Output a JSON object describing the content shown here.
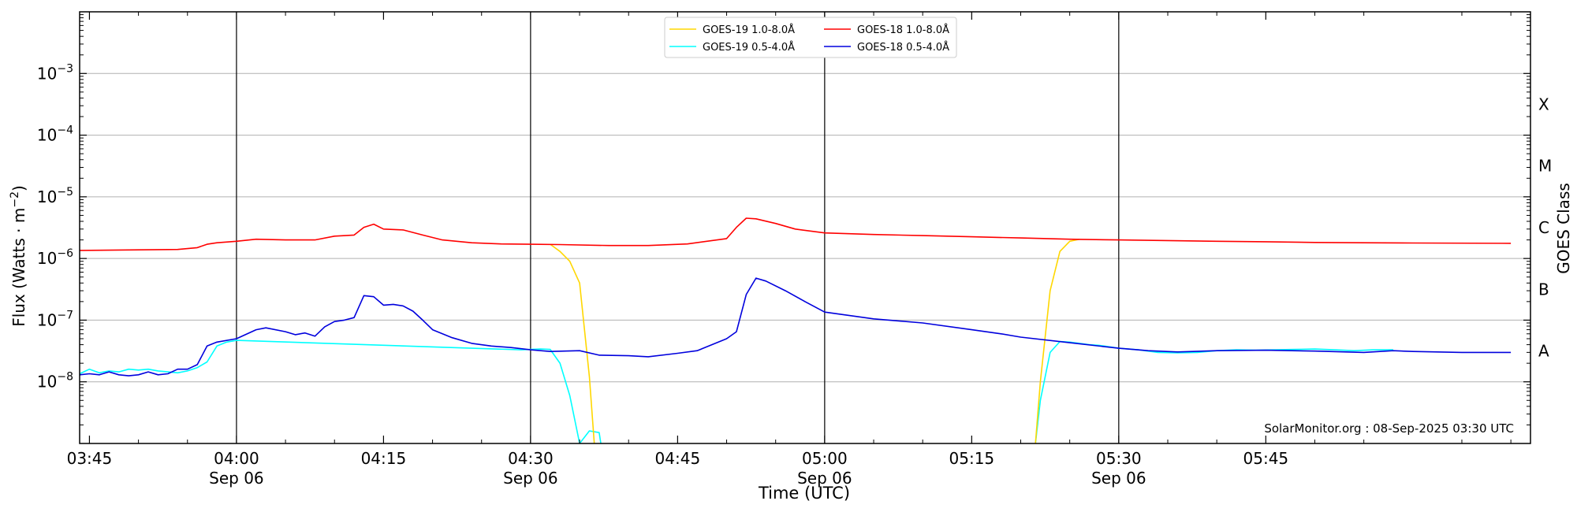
{
  "chart_data": {
    "type": "line",
    "xlabel": "Time (UTC)",
    "ylabel": "Flux (Watts · m",
    "ylabel_sup": "−2",
    "ylabel_close": ")",
    "right_label": "GOES Class",
    "watermark": "SolarMonitor.org : 08-Sep-2025 03:30 UTC",
    "yscale": "log",
    "ylim": [
      1e-09,
      0.01
    ],
    "xlim": [
      "03:44",
      "06:12"
    ],
    "grid": "horizontal",
    "legend_position": "top-center",
    "x_ticks": [
      {
        "t": "03:45",
        "label": "03:45",
        "date": ""
      },
      {
        "t": "04:00",
        "label": "04:00",
        "date": "Sep 06"
      },
      {
        "t": "04:15",
        "label": "04:15",
        "date": ""
      },
      {
        "t": "04:30",
        "label": "04:30",
        "date": "Sep 06"
      },
      {
        "t": "04:45",
        "label": "04:45",
        "date": ""
      },
      {
        "t": "05:00",
        "label": "05:00",
        "date": "Sep 06"
      },
      {
        "t": "05:15",
        "label": "05:15",
        "date": ""
      },
      {
        "t": "05:30",
        "label": "05:30",
        "date": "Sep 06"
      },
      {
        "t": "05:45",
        "label": "05:45",
        "date": ""
      }
    ],
    "y_ticks": [
      {
        "exp": -8,
        "mant": "10",
        "sup": "−8"
      },
      {
        "exp": -7,
        "mant": "10",
        "sup": "−7"
      },
      {
        "exp": -6,
        "mant": "10",
        "sup": "−6"
      },
      {
        "exp": -5,
        "mant": "10",
        "sup": "−5"
      },
      {
        "exp": -4,
        "mant": "10",
        "sup": "−4"
      },
      {
        "exp": -3,
        "mant": "10",
        "sup": "−3"
      }
    ],
    "vertical_lines": [
      "04:00",
      "04:30",
      "05:00",
      "05:30"
    ],
    "classes": [
      {
        "label": "A",
        "exp": -7.5
      },
      {
        "label": "B",
        "exp": -6.5
      },
      {
        "label": "C",
        "exp": -5.5
      },
      {
        "label": "M",
        "exp": -4.5
      },
      {
        "label": "X",
        "exp": -3.5
      }
    ],
    "series": [
      {
        "name": "GOES-19 1.0-8.0Å",
        "color": "#ffd700",
        "points": [
          [
            "04:32",
            1.7e-06
          ],
          [
            "04:33",
            1.3e-06
          ],
          [
            "04:34",
            9e-07
          ],
          [
            "04:35",
            4e-07
          ],
          [
            "04:36",
            1.2e-08
          ],
          [
            "04:36:30",
            1e-09
          ]
        ]
      },
      {
        "name": "GOES-19 1.0-8.0Å",
        "color": "#ffd700",
        "points": [
          [
            "05:21:30",
            1e-09
          ],
          [
            "05:22",
            1e-08
          ],
          [
            "05:23",
            3e-07
          ],
          [
            "05:24",
            1.3e-06
          ],
          [
            "05:25",
            1.9e-06
          ],
          [
            "05:26",
            2.05e-06
          ]
        ]
      },
      {
        "name": "GOES-19 0.5-4.0Å",
        "color": "#00ffff",
        "points": [
          [
            "03:44",
            1.35e-08
          ],
          [
            "03:45",
            1.6e-08
          ],
          [
            "03:46",
            1.4e-08
          ],
          [
            "03:47",
            1.5e-08
          ],
          [
            "03:48",
            1.45e-08
          ],
          [
            "03:49",
            1.6e-08
          ],
          [
            "03:50",
            1.55e-08
          ],
          [
            "03:51",
            1.6e-08
          ],
          [
            "03:52",
            1.5e-08
          ],
          [
            "03:53",
            1.45e-08
          ],
          [
            "03:54",
            1.4e-08
          ],
          [
            "03:55",
            1.5e-08
          ],
          [
            "03:56",
            1.7e-08
          ],
          [
            "03:57",
            2.1e-08
          ],
          [
            "03:58",
            3.8e-08
          ],
          [
            "03:59",
            4.4e-08
          ],
          [
            "04:00",
            4.7e-08
          ],
          [
            "04:29",
            3.3e-08
          ],
          [
            "04:30",
            3.35e-08
          ],
          [
            "04:31",
            3.4e-08
          ],
          [
            "04:32",
            3.35e-08
          ],
          [
            "04:33",
            2e-08
          ],
          [
            "04:34",
            6e-09
          ],
          [
            "04:35",
            1e-09
          ],
          [
            "04:36",
            1.6e-09
          ],
          [
            "04:37",
            1.5e-09
          ],
          [
            "04:37:10",
            1e-09
          ]
        ]
      },
      {
        "name": "GOES-19 0.5-4.0Å",
        "color": "#00ffff",
        "points": [
          [
            "05:21:30",
            1e-09
          ],
          [
            "05:22",
            5e-09
          ],
          [
            "05:23",
            3e-08
          ],
          [
            "05:24",
            4.5e-08
          ],
          [
            "05:25",
            4.4e-08
          ],
          [
            "05:26",
            4.2e-08
          ],
          [
            "05:27",
            4e-08
          ],
          [
            "05:28",
            3.9e-08
          ],
          [
            "05:30",
            3.5e-08
          ],
          [
            "05:32",
            3.3e-08
          ],
          [
            "05:34",
            3e-08
          ],
          [
            "05:36",
            2.95e-08
          ],
          [
            "05:38",
            3e-08
          ],
          [
            "05:40",
            3.2e-08
          ],
          [
            "05:42",
            3.3e-08
          ],
          [
            "05:44",
            3.25e-08
          ],
          [
            "05:46",
            3.3e-08
          ],
          [
            "05:48",
            3.35e-08
          ],
          [
            "05:50",
            3.4e-08
          ],
          [
            "05:52",
            3.3e-08
          ],
          [
            "05:54",
            3.2e-08
          ],
          [
            "05:56",
            3.3e-08
          ],
          [
            "05:58",
            3.3e-08
          ]
        ]
      },
      {
        "name": "GOES-18 1.0-8.0Å",
        "color": "#ff0000",
        "points": [
          [
            "03:44",
            1.35e-06
          ],
          [
            "03:50",
            1.38e-06
          ],
          [
            "03:54",
            1.4e-06
          ],
          [
            "03:56",
            1.5e-06
          ],
          [
            "03:57",
            1.7e-06
          ],
          [
            "03:58",
            1.8e-06
          ],
          [
            "04:00",
            1.9e-06
          ],
          [
            "04:02",
            2.05e-06
          ],
          [
            "04:05",
            2e-06
          ],
          [
            "04:08",
            2e-06
          ],
          [
            "04:10",
            2.3e-06
          ],
          [
            "04:12",
            2.4e-06
          ],
          [
            "04:13",
            3.2e-06
          ],
          [
            "04:14",
            3.6e-06
          ],
          [
            "04:15",
            3e-06
          ],
          [
            "04:17",
            2.9e-06
          ],
          [
            "04:19",
            2.4e-06
          ],
          [
            "04:21",
            2e-06
          ],
          [
            "04:24",
            1.8e-06
          ],
          [
            "04:27",
            1.72e-06
          ],
          [
            "04:30",
            1.7e-06
          ],
          [
            "04:33",
            1.68e-06
          ],
          [
            "04:38",
            1.62e-06
          ],
          [
            "04:42",
            1.62e-06
          ],
          [
            "04:46",
            1.72e-06
          ],
          [
            "04:50",
            2.1e-06
          ],
          [
            "04:51",
            3.2e-06
          ],
          [
            "04:52",
            4.5e-06
          ],
          [
            "04:53",
            4.4e-06
          ],
          [
            "04:55",
            3.7e-06
          ],
          [
            "04:57",
            3e-06
          ],
          [
            "05:00",
            2.6e-06
          ],
          [
            "05:05",
            2.45e-06
          ],
          [
            "05:10",
            2.35e-06
          ],
          [
            "05:15",
            2.25e-06
          ],
          [
            "05:20",
            2.15e-06
          ],
          [
            "05:25",
            2.05e-06
          ],
          [
            "05:30",
            2e-06
          ],
          [
            "05:35",
            1.95e-06
          ],
          [
            "05:40",
            1.9e-06
          ],
          [
            "05:45",
            1.87e-06
          ],
          [
            "05:50",
            1.82e-06
          ],
          [
            "05:55",
            1.8e-06
          ],
          [
            "06:00",
            1.78e-06
          ],
          [
            "06:10",
            1.76e-06
          ]
        ]
      },
      {
        "name": "GOES-18 0.5-4.0Å",
        "color": "#0000dd",
        "points": [
          [
            "03:44",
            1.3e-08
          ],
          [
            "03:45",
            1.35e-08
          ],
          [
            "03:46",
            1.3e-08
          ],
          [
            "03:47",
            1.45e-08
          ],
          [
            "03:48",
            1.3e-08
          ],
          [
            "03:49",
            1.25e-08
          ],
          [
            "03:50",
            1.3e-08
          ],
          [
            "03:51",
            1.45e-08
          ],
          [
            "03:52",
            1.3e-08
          ],
          [
            "03:53",
            1.35e-08
          ],
          [
            "03:54",
            1.6e-08
          ],
          [
            "03:55",
            1.6e-08
          ],
          [
            "03:56",
            1.9e-08
          ],
          [
            "03:57",
            3.8e-08
          ],
          [
            "03:58",
            4.4e-08
          ],
          [
            "04:00",
            5e-08
          ],
          [
            "04:02",
            7e-08
          ],
          [
            "04:03",
            7.5e-08
          ],
          [
            "04:05",
            6.5e-08
          ],
          [
            "04:06",
            5.8e-08
          ],
          [
            "04:07",
            6.2e-08
          ],
          [
            "04:08",
            5.5e-08
          ],
          [
            "04:09",
            7.8e-08
          ],
          [
            "04:10",
            9.5e-08
          ],
          [
            "04:11",
            1e-07
          ],
          [
            "04:12",
            1.1e-07
          ],
          [
            "04:13",
            2.5e-07
          ],
          [
            "04:14",
            2.4e-07
          ],
          [
            "04:15",
            1.75e-07
          ],
          [
            "04:16",
            1.8e-07
          ],
          [
            "04:17",
            1.7e-07
          ],
          [
            "04:18",
            1.4e-07
          ],
          [
            "04:19",
            1e-07
          ],
          [
            "04:20",
            7e-08
          ],
          [
            "04:22",
            5.2e-08
          ],
          [
            "04:24",
            4.2e-08
          ],
          [
            "04:26",
            3.8e-08
          ],
          [
            "04:28",
            3.6e-08
          ],
          [
            "04:30",
            3.3e-08
          ],
          [
            "04:32",
            3.1e-08
          ],
          [
            "04:35",
            3.2e-08
          ],
          [
            "04:37",
            2.7e-08
          ],
          [
            "04:40",
            2.65e-08
          ],
          [
            "04:42",
            2.55e-08
          ],
          [
            "04:45",
            2.9e-08
          ],
          [
            "04:47",
            3.2e-08
          ],
          [
            "04:50",
            5e-08
          ],
          [
            "04:51",
            6.5e-08
          ],
          [
            "04:52",
            2.6e-07
          ],
          [
            "04:53",
            4.8e-07
          ],
          [
            "04:54",
            4.3e-07
          ],
          [
            "04:56",
            3e-07
          ],
          [
            "04:58",
            2e-07
          ],
          [
            "05:00",
            1.35e-07
          ],
          [
            "05:05",
            1.05e-07
          ],
          [
            "05:10",
            9e-08
          ],
          [
            "05:15",
            7e-08
          ],
          [
            "05:18",
            6e-08
          ],
          [
            "05:20",
            5.3e-08
          ],
          [
            "05:25",
            4.3e-08
          ],
          [
            "05:30",
            3.5e-08
          ],
          [
            "05:33",
            3.2e-08
          ],
          [
            "05:36",
            3.05e-08
          ],
          [
            "05:40",
            3.2e-08
          ],
          [
            "05:45",
            3.25e-08
          ],
          [
            "05:50",
            3.15e-08
          ],
          [
            "05:55",
            3e-08
          ],
          [
            "05:58",
            3.2e-08
          ],
          [
            "06:00",
            3.1e-08
          ],
          [
            "06:05",
            3e-08
          ],
          [
            "06:10",
            3e-08
          ]
        ]
      }
    ],
    "legend": [
      {
        "name": "GOES-19 1.0-8.0Å",
        "color": "#ffd700"
      },
      {
        "name": "GOES-19 0.5-4.0Å",
        "color": "#00ffff"
      },
      {
        "name": "GOES-18 1.0-8.0Å",
        "color": "#ff0000"
      },
      {
        "name": "GOES-18 0.5-4.0Å",
        "color": "#0000dd"
      }
    ]
  }
}
